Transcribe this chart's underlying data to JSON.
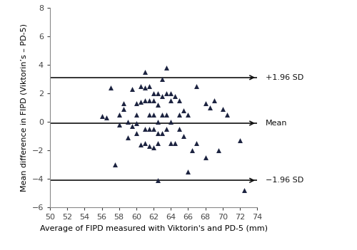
{
  "xlabel": "Average of FIPD measured with Viktorin's and PD-5 (mm)",
  "ylabel": "Mean difference in FIPD (Viktorin’s – PD-5)",
  "xlim": [
    50,
    74
  ],
  "ylim": [
    -6,
    8
  ],
  "xticks": [
    50,
    52,
    54,
    56,
    58,
    60,
    62,
    64,
    66,
    68,
    70,
    72,
    74
  ],
  "yticks": [
    -6,
    -4,
    -2,
    0,
    2,
    4,
    6,
    8
  ],
  "mean_line": -0.1,
  "upper_loa": 3.1,
  "lower_loa": -4.1,
  "mean_label": "Mean",
  "upper_label": "+1.96 SD",
  "lower_label": "−1.96 SD",
  "marker_color": "#1c2340",
  "marker_size": 5,
  "line_color": "#111111",
  "figsize": [
    5.0,
    3.51
  ],
  "dpi": 100,
  "font_size": 8,
  "label_font_size": 8,
  "scatter_x": [
    56.0,
    56.5,
    57.0,
    57.5,
    58.0,
    58.0,
    58.5,
    58.5,
    59.0,
    59.0,
    59.5,
    59.5,
    60.0,
    60.0,
    60.0,
    60.0,
    60.5,
    60.5,
    60.5,
    61.0,
    61.0,
    61.0,
    61.0,
    61.0,
    61.5,
    61.5,
    61.5,
    61.5,
    61.5,
    62.0,
    62.0,
    62.0,
    62.0,
    62.0,
    62.5,
    62.5,
    62.5,
    62.5,
    62.5,
    62.5,
    63.0,
    63.0,
    63.0,
    63.0,
    63.5,
    63.5,
    63.5,
    63.5,
    64.0,
    64.0,
    64.0,
    64.0,
    64.5,
    64.5,
    65.0,
    65.0,
    65.0,
    65.5,
    65.5,
    66.0,
    66.0,
    66.5,
    67.0,
    67.0,
    68.0,
    68.0,
    68.5,
    69.0,
    69.5,
    70.0,
    70.5,
    72.0,
    72.5
  ],
  "scatter_y": [
    0.4,
    0.3,
    2.4,
    -3.0,
    0.5,
    -0.2,
    1.3,
    0.9,
    -1.1,
    0.0,
    2.3,
    -0.3,
    1.3,
    0.5,
    -0.1,
    -0.8,
    2.5,
    1.4,
    -1.6,
    3.5,
    2.4,
    1.5,
    -0.5,
    -1.5,
    2.5,
    1.5,
    0.5,
    -0.5,
    -1.7,
    2.0,
    1.5,
    0.5,
    -0.5,
    -1.8,
    2.0,
    1.2,
    0.0,
    -0.8,
    -1.5,
    -4.1,
    3.0,
    1.8,
    0.5,
    -0.8,
    3.8,
    2.0,
    0.5,
    -0.5,
    2.0,
    1.5,
    0.0,
    -1.5,
    1.8,
    -1.5,
    1.5,
    0.5,
    -0.5,
    0.8,
    -1.0,
    0.5,
    -3.5,
    -2.0,
    2.5,
    -1.5,
    1.3,
    -2.5,
    1.0,
    1.5,
    -2.0,
    0.9,
    0.5,
    -1.3,
    -4.8
  ]
}
